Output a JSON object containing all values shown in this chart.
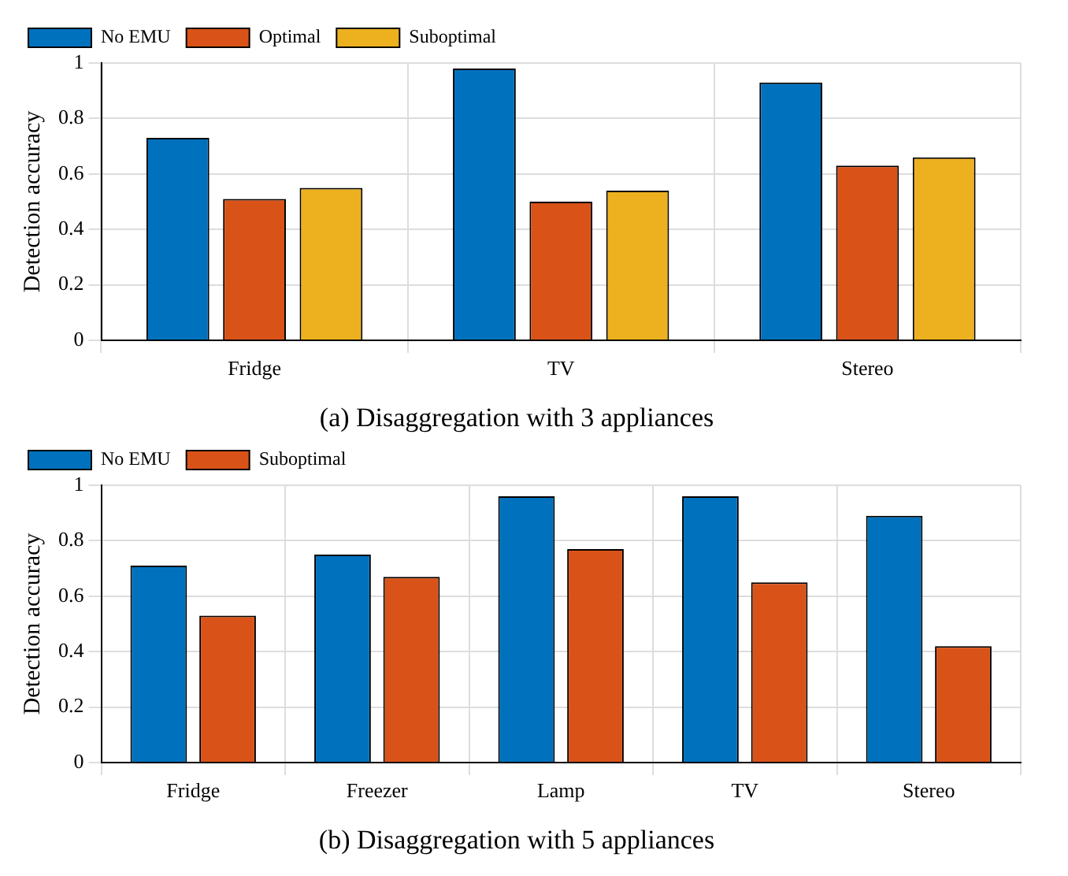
{
  "chart_data": [
    {
      "type": "bar",
      "title": "(a) Disaggregation with 3 appliances",
      "ylabel": "Detection accuracy",
      "categories": [
        "Fridge",
        "TV",
        "Stereo"
      ],
      "series": [
        {
          "name": "No EMU",
          "color": "#0072bd",
          "values": [
            0.73,
            0.98,
            0.93
          ]
        },
        {
          "name": "Optimal",
          "color": "#d95319",
          "values": [
            0.51,
            0.5,
            0.63
          ]
        },
        {
          "name": "Suboptimal",
          "color": "#edb120",
          "values": [
            0.55,
            0.54,
            0.66
          ]
        }
      ],
      "ylim": [
        0,
        1
      ],
      "yticks": [
        0,
        0.2,
        0.4,
        0.6,
        0.8,
        1
      ],
      "grid": true,
      "legend": "top left"
    },
    {
      "type": "bar",
      "title": "(b) Disaggregation with 5 appliances",
      "ylabel": "Detection accuracy",
      "categories": [
        "Fridge",
        "Freezer",
        "Lamp",
        "TV",
        "Stereo"
      ],
      "series": [
        {
          "name": "No EMU",
          "color": "#0072bd",
          "values": [
            0.71,
            0.75,
            0.96,
            0.96,
            0.89
          ]
        },
        {
          "name": "Suboptimal",
          "color": "#d95319",
          "values": [
            0.53,
            0.67,
            0.77,
            0.65,
            0.42
          ]
        }
      ],
      "ylim": [
        0,
        1
      ],
      "yticks": [
        0,
        0.2,
        0.4,
        0.6,
        0.8,
        1
      ],
      "grid": true,
      "legend": "top left"
    }
  ]
}
